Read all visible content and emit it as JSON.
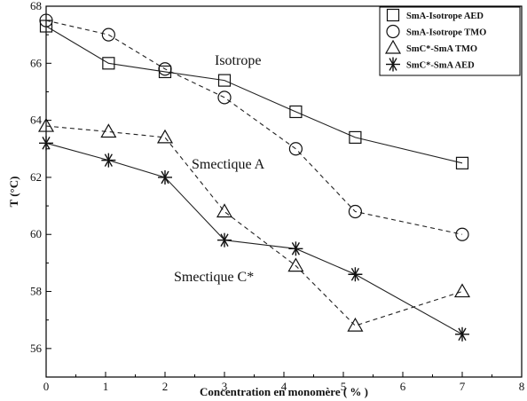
{
  "chart_data": {
    "type": "line",
    "xlabel": "Concentration en monomère ( % )",
    "ylabel": "T (°C)",
    "xlim": [
      0,
      8
    ],
    "ylim": [
      55,
      68
    ],
    "xticks": [
      "0",
      "1",
      "2",
      "3",
      "4",
      "5",
      "6",
      "7",
      "8"
    ],
    "yticks": [
      "56",
      "58",
      "60",
      "62",
      "64",
      "66",
      "68"
    ],
    "legend_position": "top-right",
    "annotations": [
      "Isotrope",
      "Smectique A",
      "Smectique C*"
    ],
    "series": [
      {
        "name": "SmA-Isotrope AED",
        "marker": "square",
        "line": "solid",
        "x": [
          0,
          1.05,
          2,
          3,
          4.2,
          5.2,
          7
        ],
        "y": [
          67.3,
          66.0,
          65.7,
          65.4,
          64.3,
          63.4,
          62.5
        ]
      },
      {
        "name": "SmA-Isotrope TMO",
        "marker": "circle",
        "line": "dashed",
        "x": [
          0,
          1.05,
          2,
          3,
          4.2,
          5.2,
          7
        ],
        "y": [
          67.5,
          67.0,
          65.8,
          64.8,
          63.0,
          60.8,
          60.0
        ]
      },
      {
        "name": "SmC*-SmA TMO",
        "marker": "triangle",
        "line": "dashed",
        "x": [
          0,
          1.05,
          2,
          3,
          4.2,
          5.2,
          7
        ],
        "y": [
          63.8,
          63.6,
          63.4,
          60.8,
          58.9,
          56.8,
          58.0
        ]
      },
      {
        "name": "SmC*-SmA AED",
        "marker": "star",
        "line": "solid",
        "x": [
          0,
          1.05,
          2,
          3,
          4.2,
          5.2,
          7
        ],
        "y": [
          63.2,
          62.6,
          62.0,
          59.8,
          59.5,
          58.6,
          56.5
        ]
      }
    ]
  }
}
